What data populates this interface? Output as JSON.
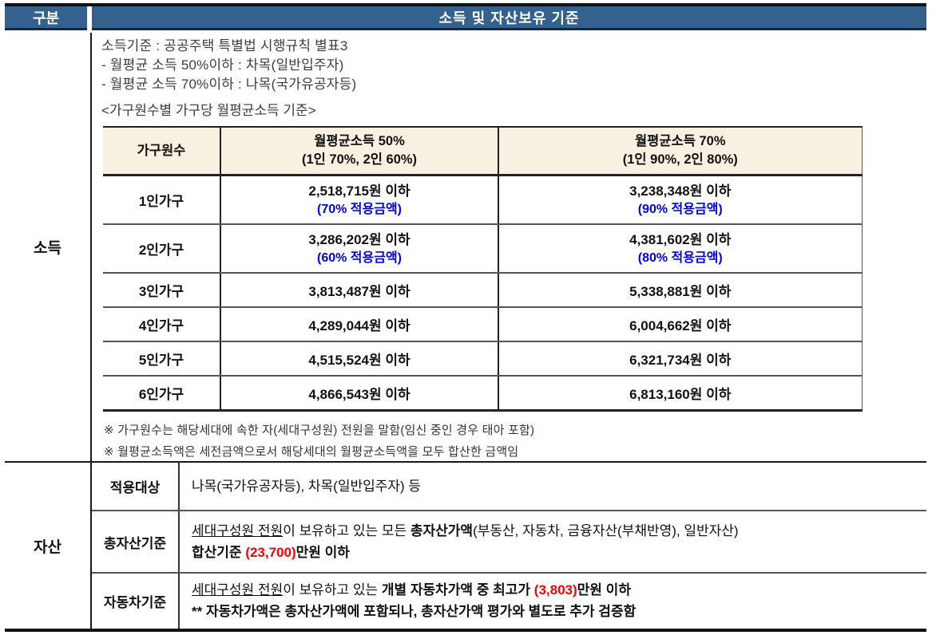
{
  "header": {
    "col_label": "구분",
    "title": "소득 및 자산보유 기준"
  },
  "income_section": {
    "row_label": "소득",
    "intro_lines": [
      "소득기준 : 공공주택 특별법 시행규칙 별표3",
      "- 월평균 소득 50%이하 : 차목(일반입주자)",
      "- 월평균 소득 70%이하 : 나목(국가유공자등)"
    ],
    "table_caption": "<가구원수별 가구당 월평균소득 기준>",
    "table": {
      "headers": {
        "col1": "가구원수",
        "col2_line1": "월평균소득 50%",
        "col2_line2": "(1인 70%, 2인 60%)",
        "col3_line1": "월평균소득 70%",
        "col3_line2": "(1인 90%, 2인 80%)"
      },
      "rows": [
        {
          "household": "1인가구",
          "pct50": "2,518,715원 이하",
          "pct50_note": "(70% 적용금액)",
          "pct70": "3,238,348원 이하",
          "pct70_note": "(90% 적용금액)"
        },
        {
          "household": "2인가구",
          "pct50": "3,286,202원 이하",
          "pct50_note": "(60% 적용금액)",
          "pct70": "4,381,602원 이하",
          "pct70_note": "(80% 적용금액)"
        },
        {
          "household": "3인가구",
          "pct50": "3,813,487원 이하",
          "pct70": "5,338,881원 이하"
        },
        {
          "household": "4인가구",
          "pct50": "4,289,044원 이하",
          "pct70": "6,004,662원 이하"
        },
        {
          "household": "5인가구",
          "pct50": "4,515,524원 이하",
          "pct70": "6,321,734원 이하"
        },
        {
          "household": "6인가구",
          "pct50": "4,866,543원 이하",
          "pct70": "6,813,160원 이하"
        }
      ]
    },
    "notes": [
      "※ 가구원수는 해당세대에 속한 자(세대구성원) 전원을 말함(임신 중인 경우 태아 포함)",
      "※ 월평균소득액은 세전금액으로서 해당세대의 월평균소득액을 모두 합산한 금액임"
    ]
  },
  "asset_section": {
    "row_label": "자산",
    "target_label": "적용대상",
    "target_text": "나목(국가유공자등), 차목(일반입주자) 등",
    "total_label": "총자산기준",
    "total_line1_underline": "세대구성원 전원",
    "total_line1_mid": "이 보유하고 있는 모든 ",
    "total_line1_bold": "총자산가액",
    "total_line1_rest": "(부동산, 자동차, 금융자산(부채반영), 일반자산)",
    "total_line2_pre": "합산기준 ",
    "total_line2_red": "(23,700)",
    "total_line2_post": "만원 이하",
    "car_label": "자동차기준",
    "car_line1_underline": "세대구성원 전원",
    "car_line1_mid": "이 보유하고 있는 ",
    "car_line1_bold": "개별 자동차가액 중 최고가 ",
    "car_line1_red": "(3,803)",
    "car_line1_post": "만원 이하",
    "car_line2": "** 자동차가액은 총자산가액에 포함되나, 총자산가액 평가와 별도로 추가 검증함"
  },
  "colors": {
    "header_bg": "#35618e",
    "table_header_bg": "#f8f1e1",
    "note_blue": "#0000ee",
    "highlight_red": "#ff0000"
  }
}
